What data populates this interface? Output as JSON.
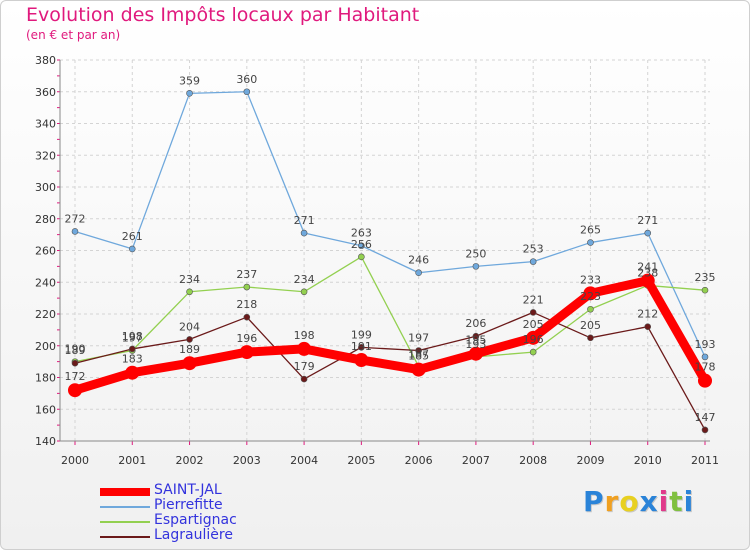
{
  "header": {
    "title": "Evolution des Impôts locaux par Habitant",
    "subtitle": "(en € et par an)"
  },
  "brand": {
    "letters": [
      "P",
      "r",
      "o",
      "x",
      "i",
      "t",
      "i"
    ],
    "colors": [
      "#2a83d8",
      "#f0a020",
      "#e8d020",
      "#2a83d8",
      "#e03a8a",
      "#80c040",
      "#2a83d8"
    ]
  },
  "chart_data": {
    "type": "line",
    "title": "Evolution des Impôts locaux par Habitant",
    "subtitle": "(en € et par an)",
    "xlabel": "",
    "ylabel": "",
    "x": [
      "2000",
      "2001",
      "2002",
      "2003",
      "2004",
      "2005",
      "2006",
      "2007",
      "2008",
      "2009",
      "2010",
      "2011"
    ],
    "ylim": [
      140,
      380
    ],
    "yticks": [
      140,
      160,
      180,
      200,
      220,
      240,
      260,
      280,
      300,
      320,
      340,
      360,
      380
    ],
    "grid": true,
    "legend": "bottom-left",
    "series": [
      {
        "name": "SAINT-JAL",
        "color": "#ff0000",
        "values": [
          172,
          183,
          189,
          196,
          198,
          191,
          185,
          195,
          205,
          233,
          241,
          178
        ]
      },
      {
        "name": "Pierrefitte",
        "color": "#6fa8dc",
        "values": [
          272,
          261,
          359,
          360,
          271,
          263,
          246,
          250,
          253,
          265,
          271,
          193
        ]
      },
      {
        "name": "Espartignac",
        "color": "#93d050",
        "values": [
          190,
          197,
          234,
          237,
          234,
          256,
          187,
          193,
          196,
          223,
          238,
          235
        ]
      },
      {
        "name": "Lagraulière",
        "color": "#6b1a1a",
        "values": [
          189,
          198,
          204,
          218,
          179,
          199,
          197,
          206,
          221,
          205,
          212,
          147
        ]
      }
    ]
  }
}
